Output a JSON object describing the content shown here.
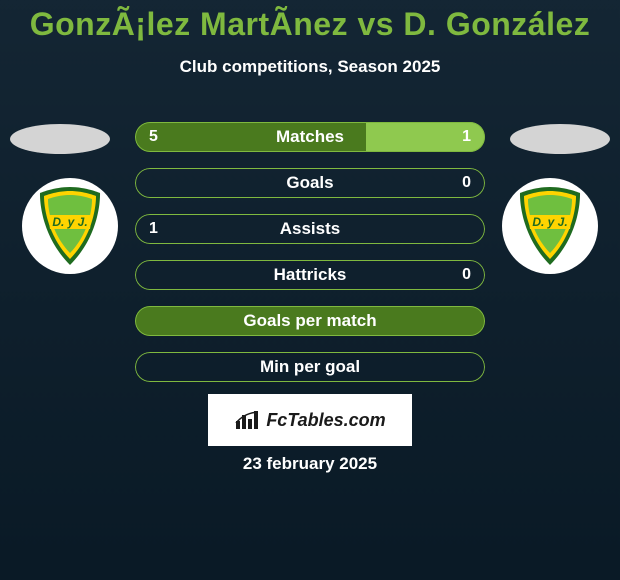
{
  "colors": {
    "background_top": "#142634",
    "background_bottom": "#0a1a26",
    "title": "#7fb93f",
    "subtitle": "#ffffff",
    "bar_label": "#ffffff",
    "bar_value": "#ffffff",
    "bar_border": "#7fb93f",
    "bar_fill_dark": "#4a7a1e",
    "bar_fill_light": "#8fc94f",
    "oval": "#d4d4d4",
    "badge_bg": "#ffffff",
    "shield_green_dark": "#1f6b1f",
    "shield_green_light": "#6fbf3f",
    "shield_yellow": "#ffd400",
    "branding_bg": "#ffffff",
    "branding_text": "#1a1a1a",
    "date": "#ffffff"
  },
  "title": "GonzÃ¡lez MartÃ­nez vs D. González",
  "subtitle": "Club competitions, Season 2025",
  "bars": [
    {
      "label": "Matches",
      "left_val": "5",
      "right_val": "1",
      "left_pct": 66,
      "right_pct": 34,
      "show_left": true,
      "show_right": true
    },
    {
      "label": "Goals",
      "left_val": "",
      "right_val": "0",
      "left_pct": 0,
      "right_pct": 0,
      "show_left": false,
      "show_right": true
    },
    {
      "label": "Assists",
      "left_val": "1",
      "right_val": "",
      "left_pct": 0,
      "right_pct": 0,
      "show_left": true,
      "show_right": false
    },
    {
      "label": "Hattricks",
      "left_val": "",
      "right_val": "0",
      "left_pct": 0,
      "right_pct": 0,
      "show_left": false,
      "show_right": true
    },
    {
      "label": "Goals per match",
      "left_val": "",
      "right_val": "",
      "left_pct": 100,
      "right_pct": 0,
      "show_left": false,
      "show_right": false
    },
    {
      "label": "Min per goal",
      "left_val": "",
      "right_val": "",
      "left_pct": 0,
      "right_pct": 0,
      "show_left": false,
      "show_right": false
    }
  ],
  "branding": "FcTables.com",
  "date": "23 february 2025",
  "badge_text": "D. y J."
}
